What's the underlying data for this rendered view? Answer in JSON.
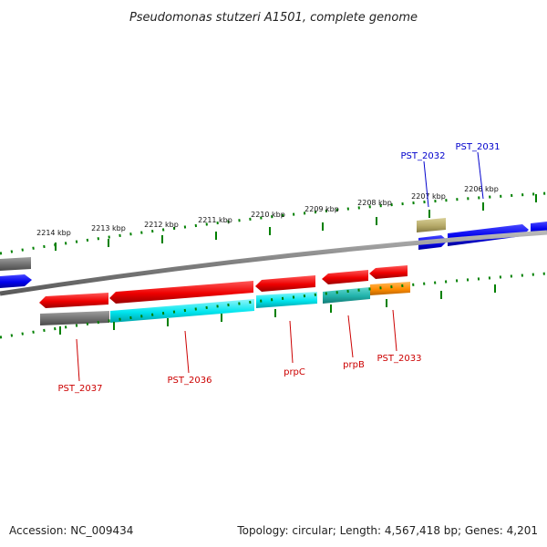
{
  "title": "Pseudomonas stutzeri A1501, complete genome",
  "footer": {
    "accession": "Accession: NC_009434",
    "summary": "Topology: circular; Length: 4,567,418 bp; Genes: 4,201"
  },
  "ticks": [
    "2214 kbp",
    "2213 kbp",
    "2212 kbp",
    "2211 kbp",
    "2210 kbp",
    "2209 kbp",
    "2208 kbp",
    "2207 kbp",
    "2206 kbp"
  ],
  "labels_top": [
    "PST_2032",
    "PST_2031"
  ],
  "labels_bottom": [
    "PST_2037",
    "PST_2036",
    "prpC",
    "prpB",
    "PST_2033"
  ],
  "colors": {
    "forward_gene": "#0000ee",
    "reverse_gene": "#ee0000",
    "backbone": "#808080",
    "tick": "#008000",
    "cyan": "#00e5ee",
    "teal": "#20b2aa",
    "orange": "#ff8c00",
    "khaki": "#b5a968",
    "grey_feature": "#707070"
  }
}
